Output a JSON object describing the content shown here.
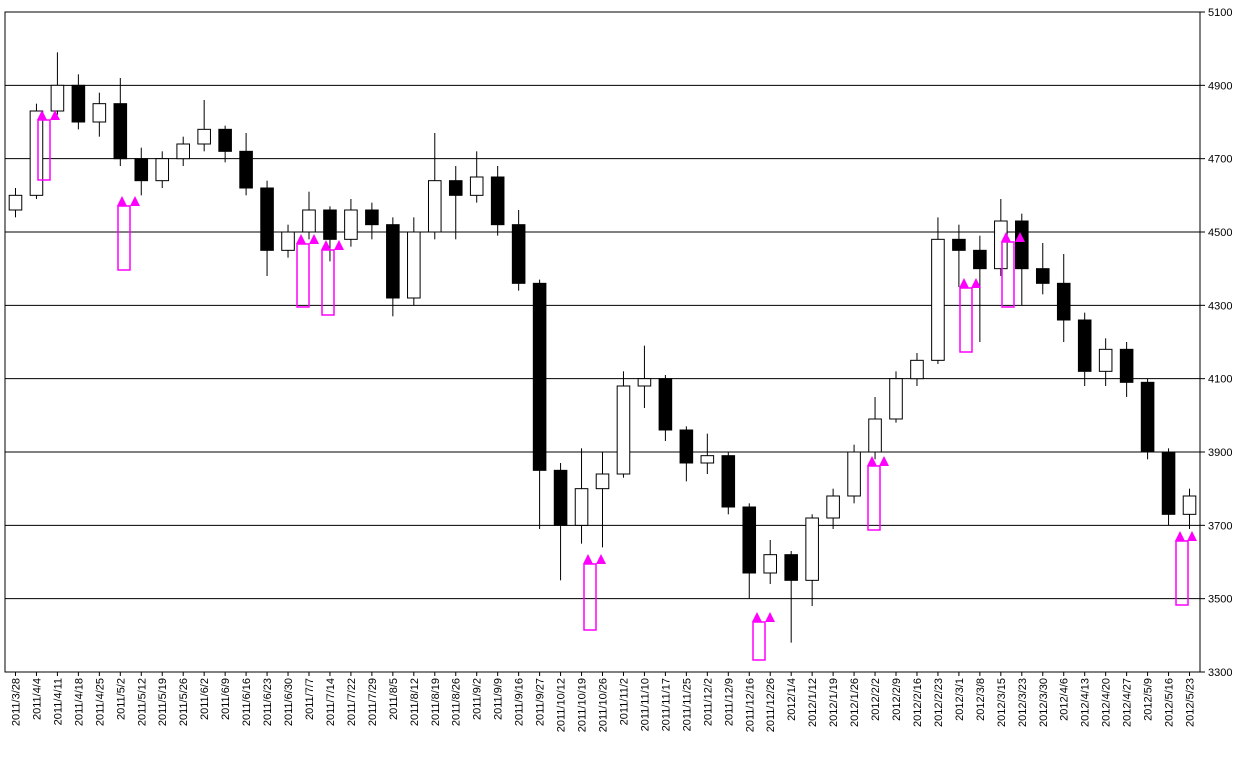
{
  "chart_data": {
    "type": "candlestick",
    "categories": [
      "2011/3/28",
      "2011/4/4",
      "2011/4/11",
      "2011/4/18",
      "2011/4/25",
      "2011/5/2",
      "2011/5/12",
      "2011/5/19",
      "2011/5/26",
      "2011/6/2",
      "2011/6/9",
      "2011/6/16",
      "2011/6/23",
      "2011/6/30",
      "2011/7/7",
      "2011/7/14",
      "2011/7/22",
      "2011/7/29",
      "2011/8/5",
      "2011/8/12",
      "2011/8/19",
      "2011/8/26",
      "2011/9/2",
      "2011/9/9",
      "2011/9/16",
      "2011/9/27",
      "2011/10/12",
      "2011/10/19",
      "2011/10/26",
      "2011/11/2",
      "2011/11/10",
      "2011/11/17",
      "2011/11/25",
      "2011/12/2",
      "2011/12/9",
      "2011/12/16",
      "2011/12/26",
      "2012/1/4",
      "2012/1/12",
      "2012/1/19",
      "2012/1/26",
      "2012/2/2",
      "2012/2/9",
      "2012/2/16",
      "2012/2/23",
      "2012/3/1",
      "2012/3/8",
      "2012/3/15",
      "2012/3/23",
      "2012/3/30",
      "2012/4/6",
      "2012/4/13",
      "2012/4/20",
      "2012/4/27",
      "2012/5/9",
      "2012/5/16",
      "2012/5/23"
    ],
    "open": [
      4560,
      4600,
      4830,
      4900,
      4800,
      4850,
      4700,
      4640,
      4700,
      4740,
      4780,
      4720,
      4620,
      4450,
      4500,
      4560,
      4480,
      4560,
      4520,
      4320,
      4500,
      4640,
      4600,
      4650,
      4520,
      4360,
      3850,
      3700,
      3800,
      3840,
      4080,
      4100,
      3960,
      3870,
      3890,
      3750,
      3570,
      3620,
      3550,
      3720,
      3780,
      3900,
      3990,
      4100,
      4150,
      4480,
      4450,
      4400,
      4530,
      4400,
      4360,
      4260,
      4120,
      4180,
      4090,
      3900,
      3730
    ],
    "high": [
      4620,
      4850,
      4990,
      4930,
      4880,
      4920,
      4730,
      4720,
      4760,
      4860,
      4790,
      4770,
      4640,
      4520,
      4610,
      4570,
      4590,
      4580,
      4540,
      4540,
      4770,
      4680,
      4720,
      4680,
      4560,
      4370,
      3870,
      3910,
      3900,
      4120,
      4190,
      4110,
      3970,
      3950,
      3900,
      3760,
      3660,
      3630,
      3730,
      3800,
      3920,
      4050,
      4120,
      4170,
      4540,
      4520,
      4490,
      4590,
      4550,
      4470,
      4440,
      4280,
      4210,
      4200,
      4100,
      3910,
      3800
    ],
    "low": [
      4540,
      4590,
      4820,
      4780,
      4760,
      4680,
      4600,
      4620,
      4680,
      4720,
      4690,
      4600,
      4380,
      4430,
      4480,
      4420,
      4460,
      4480,
      4270,
      4300,
      4480,
      4480,
      4580,
      4490,
      4340,
      3690,
      3550,
      3650,
      3640,
      3830,
      4020,
      3930,
      3820,
      3840,
      3730,
      3500,
      3540,
      3380,
      3480,
      3690,
      3760,
      3880,
      3980,
      4080,
      4140,
      4350,
      4200,
      4380,
      4300,
      4330,
      4200,
      4080,
      4080,
      4050,
      3880,
      3700,
      3690
    ],
    "close": [
      4600,
      4830,
      4900,
      4800,
      4850,
      4700,
      4640,
      4700,
      4740,
      4780,
      4720,
      4620,
      4450,
      4500,
      4560,
      4480,
      4560,
      4520,
      4320,
      4500,
      4640,
      4600,
      4650,
      4520,
      4360,
      3850,
      3700,
      3800,
      3840,
      4080,
      4100,
      3960,
      3870,
      3890,
      3750,
      3570,
      3620,
      3550,
      3720,
      3780,
      3900,
      3990,
      4100,
      4150,
      4480,
      4450,
      4400,
      4530,
      4400,
      4360,
      4260,
      4120,
      4180,
      4090,
      3900,
      3730,
      3780
    ],
    "up_color": "#ffffff",
    "down_color": "#000000",
    "annotation_color": "#ff00ff",
    "ylim": [
      3300,
      5100
    ],
    "yticks": [
      3300,
      3500,
      3700,
      3900,
      4100,
      4300,
      4500,
      4700,
      4900,
      5100
    ],
    "grid": true
  }
}
